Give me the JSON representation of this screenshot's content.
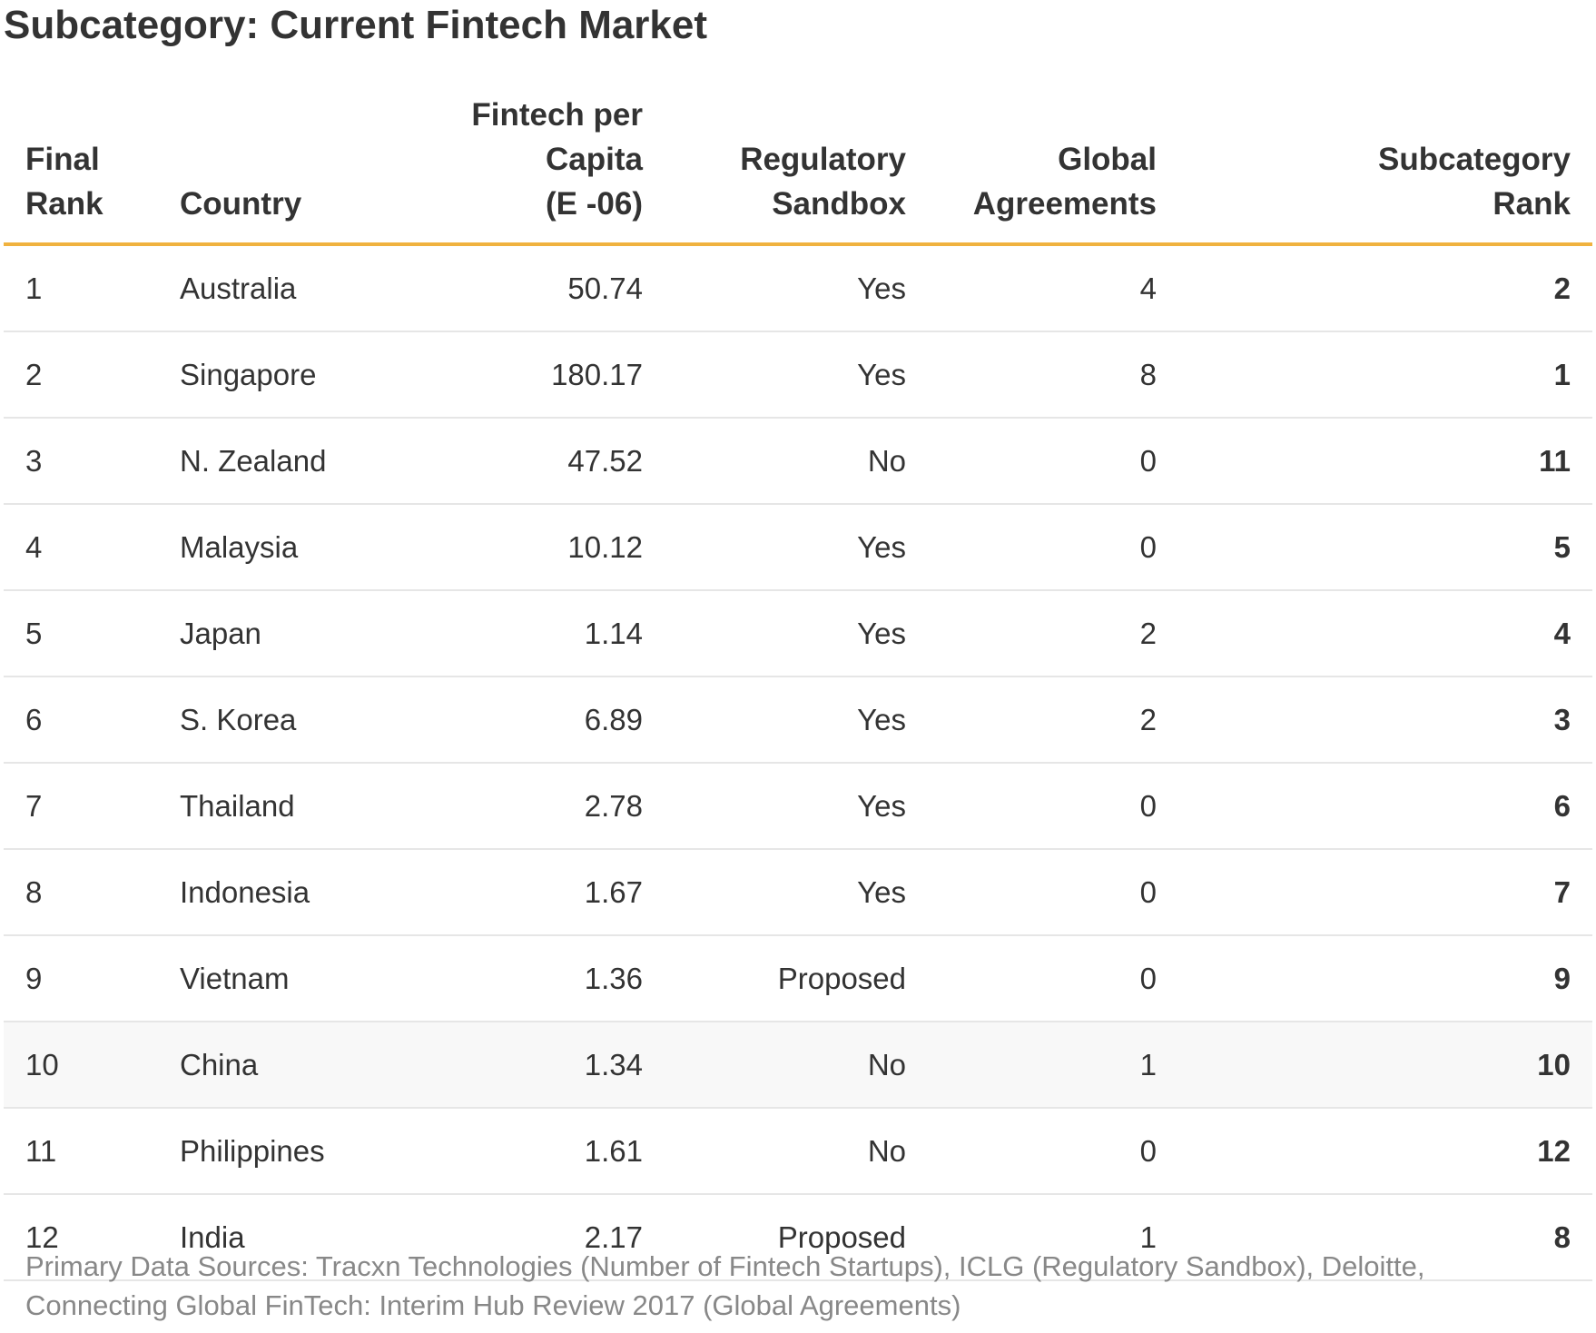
{
  "title": "Subcategory: Current Fintech Market",
  "chart_data": {
    "type": "table",
    "title": "Subcategory: Current Fintech Market",
    "columns": [
      {
        "line1": "Final",
        "line2": "Rank"
      },
      {
        "line1": "Country",
        "line2": ""
      },
      {
        "line1": "Fintech per Capita",
        "line2": "(E -06)"
      },
      {
        "line1": "Regulatory",
        "line2": "Sandbox"
      },
      {
        "line1": "Global",
        "line2": "Agreements"
      },
      {
        "line1": "Subcategory",
        "line2": "Rank"
      }
    ],
    "rows": [
      {
        "final_rank": "1",
        "country": "Australia",
        "fintech_per_capita": "50.74",
        "regulatory_sandbox": "Yes",
        "global_agreements": "4",
        "subcategory_rank": "2"
      },
      {
        "final_rank": "2",
        "country": "Singapore",
        "fintech_per_capita": "180.17",
        "regulatory_sandbox": "Yes",
        "global_agreements": "8",
        "subcategory_rank": "1"
      },
      {
        "final_rank": "3",
        "country": "N. Zealand",
        "fintech_per_capita": "47.52",
        "regulatory_sandbox": "No",
        "global_agreements": "0",
        "subcategory_rank": "11"
      },
      {
        "final_rank": "4",
        "country": "Malaysia",
        "fintech_per_capita": "10.12",
        "regulatory_sandbox": "Yes",
        "global_agreements": "0",
        "subcategory_rank": "5"
      },
      {
        "final_rank": "5",
        "country": "Japan",
        "fintech_per_capita": "1.14",
        "regulatory_sandbox": "Yes",
        "global_agreements": "2",
        "subcategory_rank": "4"
      },
      {
        "final_rank": "6",
        "country": "S. Korea",
        "fintech_per_capita": "6.89",
        "regulatory_sandbox": "Yes",
        "global_agreements": "2",
        "subcategory_rank": "3"
      },
      {
        "final_rank": "7",
        "country": "Thailand",
        "fintech_per_capita": "2.78",
        "regulatory_sandbox": "Yes",
        "global_agreements": "0",
        "subcategory_rank": "6"
      },
      {
        "final_rank": "8",
        "country": "Indonesia",
        "fintech_per_capita": "1.67",
        "regulatory_sandbox": "Yes",
        "global_agreements": "0",
        "subcategory_rank": "7"
      },
      {
        "final_rank": "9",
        "country": "Vietnam",
        "fintech_per_capita": "1.36",
        "regulatory_sandbox": "Proposed",
        "global_agreements": "0",
        "subcategory_rank": "9"
      },
      {
        "final_rank": "10",
        "country": "China",
        "fintech_per_capita": "1.34",
        "regulatory_sandbox": "No",
        "global_agreements": "1",
        "subcategory_rank": "10"
      },
      {
        "final_rank": "11",
        "country": "Philippines",
        "fintech_per_capita": "1.61",
        "regulatory_sandbox": "No",
        "global_agreements": "0",
        "subcategory_rank": "12"
      },
      {
        "final_rank": "12",
        "country": "India",
        "fintech_per_capita": "2.17",
        "regulatory_sandbox": "Proposed",
        "global_agreements": "1",
        "subcategory_rank": "8"
      }
    ],
    "highlighted_row": 9,
    "header_rule_color": "#f0b23f"
  },
  "footer": {
    "line1": "Primary Data Sources: Tracxn Technologies (Number of Fintech Startups), ICLG (Regulatory Sandbox), Deloitte,",
    "line2": "Connecting Global FinTech: Interim Hub Review 2017 (Global Agreements)"
  }
}
